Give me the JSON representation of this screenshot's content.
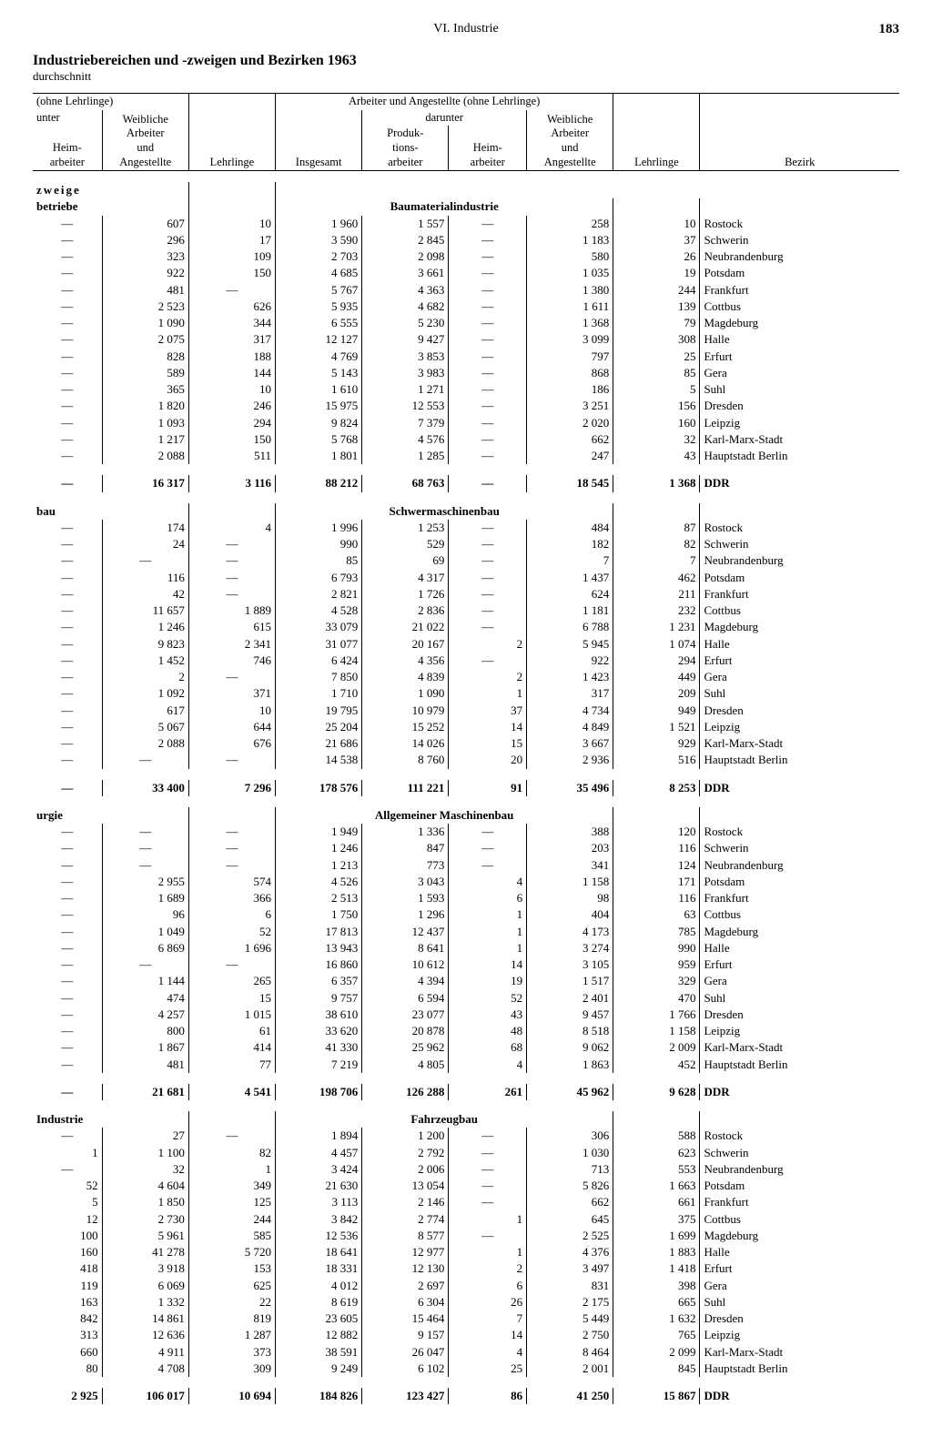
{
  "header": {
    "center": "VI. Industrie",
    "pageno": "183",
    "title": "Industriebereichen und -zweigen und Bezirken 1963",
    "subtitle": "durchschnitt"
  },
  "colhead": {
    "ohne": "(ohne Lehrlinge)",
    "unter": "unter",
    "heim": "Heim-\narbeiter",
    "weibl": "Weibliche\nArbeiter\nund\nAngestellte",
    "lehr": "Lehrlinge",
    "group": "Arbeiter und Angestellte (ohne Lehrlinge)",
    "darunter": "darunter",
    "insg": "Insgesamt",
    "prod": "Produk-\ntions-\narbeiter",
    "bezirk": "Bezirk"
  },
  "side_labels": {
    "zweige": "zweige",
    "betriebe": "betriebe",
    "bau": "bau",
    "urgie": "urgie",
    "industrie": "Industrie"
  },
  "sections": [
    {
      "title": "Baumaterialindustrie",
      "rows": [
        [
          "—",
          "607",
          "10",
          "1 960",
          "1 557",
          "—",
          "258",
          "10",
          "Rostock"
        ],
        [
          "—",
          "296",
          "17",
          "3 590",
          "2 845",
          "—",
          "1 183",
          "37",
          "Schwerin"
        ],
        [
          "—",
          "323",
          "109",
          "2 703",
          "2 098",
          "—",
          "580",
          "26",
          "Neubrandenburg"
        ],
        [
          "—",
          "922",
          "150",
          "4 685",
          "3 661",
          "—",
          "1 035",
          "19",
          "Potsdam"
        ],
        [
          "—",
          "481",
          "—",
          "5 767",
          "4 363",
          "—",
          "1 380",
          "244",
          "Frankfurt"
        ],
        [
          "—",
          "2 523",
          "626",
          "5 935",
          "4 682",
          "—",
          "1 611",
          "139",
          "Cottbus"
        ],
        [
          "—",
          "1 090",
          "344",
          "6 555",
          "5 230",
          "—",
          "1 368",
          "79",
          "Magdeburg"
        ],
        [
          "—",
          "2 075",
          "317",
          "12 127",
          "9 427",
          "—",
          "3 099",
          "308",
          "Halle"
        ],
        [
          "—",
          "828",
          "188",
          "4 769",
          "3 853",
          "—",
          "797",
          "25",
          "Erfurt"
        ],
        [
          "—",
          "589",
          "144",
          "5 143",
          "3 983",
          "—",
          "868",
          "85",
          "Gera"
        ],
        [
          "—",
          "365",
          "10",
          "1 610",
          "1 271",
          "—",
          "186",
          "5",
          "Suhl"
        ],
        [
          "—",
          "1 820",
          "246",
          "15 975",
          "12 553",
          "—",
          "3 251",
          "156",
          "Dresden"
        ],
        [
          "—",
          "1 093",
          "294",
          "9 824",
          "7 379",
          "—",
          "2 020",
          "160",
          "Leipzig"
        ],
        [
          "—",
          "1 217",
          "150",
          "5 768",
          "4 576",
          "—",
          "662",
          "32",
          "Karl-Marx-Stadt"
        ],
        [
          "—",
          "2 088",
          "511",
          "1 801",
          "1 285",
          "—",
          "247",
          "43",
          "Hauptstadt Berlin"
        ]
      ],
      "total": [
        "—",
        "16 317",
        "3 116",
        "88 212",
        "68 763",
        "—",
        "18 545",
        "1 368",
        "DDR"
      ]
    },
    {
      "title": "Schwermaschinenbau",
      "rows": [
        [
          "—",
          "174",
          "4",
          "1 996",
          "1 253",
          "—",
          "484",
          "87",
          "Rostock"
        ],
        [
          "—",
          "24",
          "—",
          "990",
          "529",
          "—",
          "182",
          "82",
          "Schwerin"
        ],
        [
          "—",
          "—",
          "—",
          "85",
          "69",
          "—",
          "7",
          "7",
          "Neubrandenburg"
        ],
        [
          "—",
          "116",
          "—",
          "6 793",
          "4 317",
          "—",
          "1 437",
          "462",
          "Potsdam"
        ],
        [
          "—",
          "42",
          "—",
          "2 821",
          "1 726",
          "—",
          "624",
          "211",
          "Frankfurt"
        ],
        [
          "—",
          "11 657",
          "1 889",
          "4 528",
          "2 836",
          "—",
          "1 181",
          "232",
          "Cottbus"
        ],
        [
          "—",
          "1 246",
          "615",
          "33 079",
          "21 022",
          "—",
          "6 788",
          "1 231",
          "Magdeburg"
        ],
        [
          "—",
          "9 823",
          "2 341",
          "31 077",
          "20 167",
          "2",
          "5 945",
          "1 074",
          "Halle"
        ],
        [
          "—",
          "1 452",
          "746",
          "6 424",
          "4 356",
          "—",
          "922",
          "294",
          "Erfurt"
        ],
        [
          "—",
          "2",
          "—",
          "7 850",
          "4 839",
          "2",
          "1 423",
          "449",
          "Gera"
        ],
        [
          "—",
          "1 092",
          "371",
          "1 710",
          "1 090",
          "1",
          "317",
          "209",
          "Suhl"
        ],
        [
          "—",
          "617",
          "10",
          "19 795",
          "10 979",
          "37",
          "4 734",
          "949",
          "Dresden"
        ],
        [
          "—",
          "5 067",
          "644",
          "25 204",
          "15 252",
          "14",
          "4 849",
          "1 521",
          "Leipzig"
        ],
        [
          "—",
          "2 088",
          "676",
          "21 686",
          "14 026",
          "15",
          "3 667",
          "929",
          "Karl-Marx-Stadt"
        ],
        [
          "—",
          "—",
          "—",
          "14 538",
          "8 760",
          "20",
          "2 936",
          "516",
          "Hauptstadt Berlin"
        ]
      ],
      "total": [
        "—",
        "33 400",
        "7 296",
        "178 576",
        "111 221",
        "91",
        "35 496",
        "8 253",
        "DDR"
      ]
    },
    {
      "title": "Allgemeiner Maschinenbau",
      "rows": [
        [
          "—",
          "—",
          "—",
          "1 949",
          "1 336",
          "—",
          "388",
          "120",
          "Rostock"
        ],
        [
          "—",
          "—",
          "—",
          "1 246",
          "847",
          "—",
          "203",
          "116",
          "Schwerin"
        ],
        [
          "—",
          "—",
          "—",
          "1 213",
          "773",
          "—",
          "341",
          "124",
          "Neubrandenburg"
        ],
        [
          "—",
          "2 955",
          "574",
          "4 526",
          "3 043",
          "4",
          "1 158",
          "171",
          "Potsdam"
        ],
        [
          "—",
          "1 689",
          "366",
          "2 513",
          "1 593",
          "6",
          "98",
          "116",
          "Frankfurt"
        ],
        [
          "—",
          "96",
          "6",
          "1 750",
          "1 296",
          "1",
          "404",
          "63",
          "Cottbus"
        ],
        [
          "—",
          "1 049",
          "52",
          "17 813",
          "12 437",
          "1",
          "4 173",
          "785",
          "Magdeburg"
        ],
        [
          "—",
          "6 869",
          "1 696",
          "13 943",
          "8 641",
          "1",
          "3 274",
          "990",
          "Halle"
        ],
        [
          "—",
          "—",
          "—",
          "16 860",
          "10 612",
          "14",
          "3 105",
          "959",
          "Erfurt"
        ],
        [
          "—",
          "1 144",
          "265",
          "6 357",
          "4 394",
          "19",
          "1 517",
          "329",
          "Gera"
        ],
        [
          "—",
          "474",
          "15",
          "9 757",
          "6 594",
          "52",
          "2 401",
          "470",
          "Suhl"
        ],
        [
          "—",
          "4 257",
          "1 015",
          "38 610",
          "23 077",
          "43",
          "9 457",
          "1 766",
          "Dresden"
        ],
        [
          "—",
          "800",
          "61",
          "33 620",
          "20 878",
          "48",
          "8 518",
          "1 158",
          "Leipzig"
        ],
        [
          "—",
          "1 867",
          "414",
          "41 330",
          "25 962",
          "68",
          "9 062",
          "2 009",
          "Karl-Marx-Stadt"
        ],
        [
          "—",
          "481",
          "77",
          "7 219",
          "4 805",
          "4",
          "1 863",
          "452",
          "Hauptstadt Berlin"
        ]
      ],
      "total": [
        "—",
        "21 681",
        "4 541",
        "198 706",
        "126 288",
        "261",
        "45 962",
        "9 628",
        "DDR"
      ]
    },
    {
      "title": "Fahrzeugbau",
      "rows": [
        [
          "—",
          "27",
          "—",
          "1 894",
          "1 200",
          "—",
          "306",
          "588",
          "Rostock"
        ],
        [
          "1",
          "1 100",
          "82",
          "4 457",
          "2 792",
          "—",
          "1 030",
          "623",
          "Schwerin"
        ],
        [
          "—",
          "32",
          "1",
          "3 424",
          "2 006",
          "—",
          "713",
          "553",
          "Neubrandenburg"
        ],
        [
          "52",
          "4 604",
          "349",
          "21 630",
          "13 054",
          "—",
          "5 826",
          "1 663",
          "Potsdam"
        ],
        [
          "5",
          "1 850",
          "125",
          "3 113",
          "2 146",
          "—",
          "662",
          "661",
          "Frankfurt"
        ],
        [
          "12",
          "2 730",
          "244",
          "3 842",
          "2 774",
          "1",
          "645",
          "375",
          "Cottbus"
        ],
        [
          "100",
          "5 961",
          "585",
          "12 536",
          "8 577",
          "—",
          "2 525",
          "1 699",
          "Magdeburg"
        ],
        [
          "160",
          "41 278",
          "5 720",
          "18 641",
          "12 977",
          "1",
          "4 376",
          "1 883",
          "Halle"
        ],
        [
          "418",
          "3 918",
          "153",
          "18 331",
          "12 130",
          "2",
          "3 497",
          "1 418",
          "Erfurt"
        ],
        [
          "119",
          "6 069",
          "625",
          "4 012",
          "2 697",
          "6",
          "831",
          "398",
          "Gera"
        ],
        [
          "163",
          "1 332",
          "22",
          "8 619",
          "6 304",
          "26",
          "2 175",
          "665",
          "Suhl"
        ],
        [
          "842",
          "14 861",
          "819",
          "23 605",
          "15 464",
          "7",
          "5 449",
          "1 632",
          "Dresden"
        ],
        [
          "313",
          "12 636",
          "1 287",
          "12 882",
          "9 157",
          "14",
          "2 750",
          "765",
          "Leipzig"
        ],
        [
          "660",
          "4 911",
          "373",
          "38 591",
          "26 047",
          "4",
          "8 464",
          "2 099",
          "Karl-Marx-Stadt"
        ],
        [
          "80",
          "4 708",
          "309",
          "9 249",
          "6 102",
          "25",
          "2 001",
          "845",
          "Hauptstadt Berlin"
        ]
      ],
      "total": [
        "2 925",
        "106 017",
        "10 694",
        "184 826",
        "123 427",
        "86",
        "41 250",
        "15 867",
        "DDR"
      ]
    }
  ]
}
